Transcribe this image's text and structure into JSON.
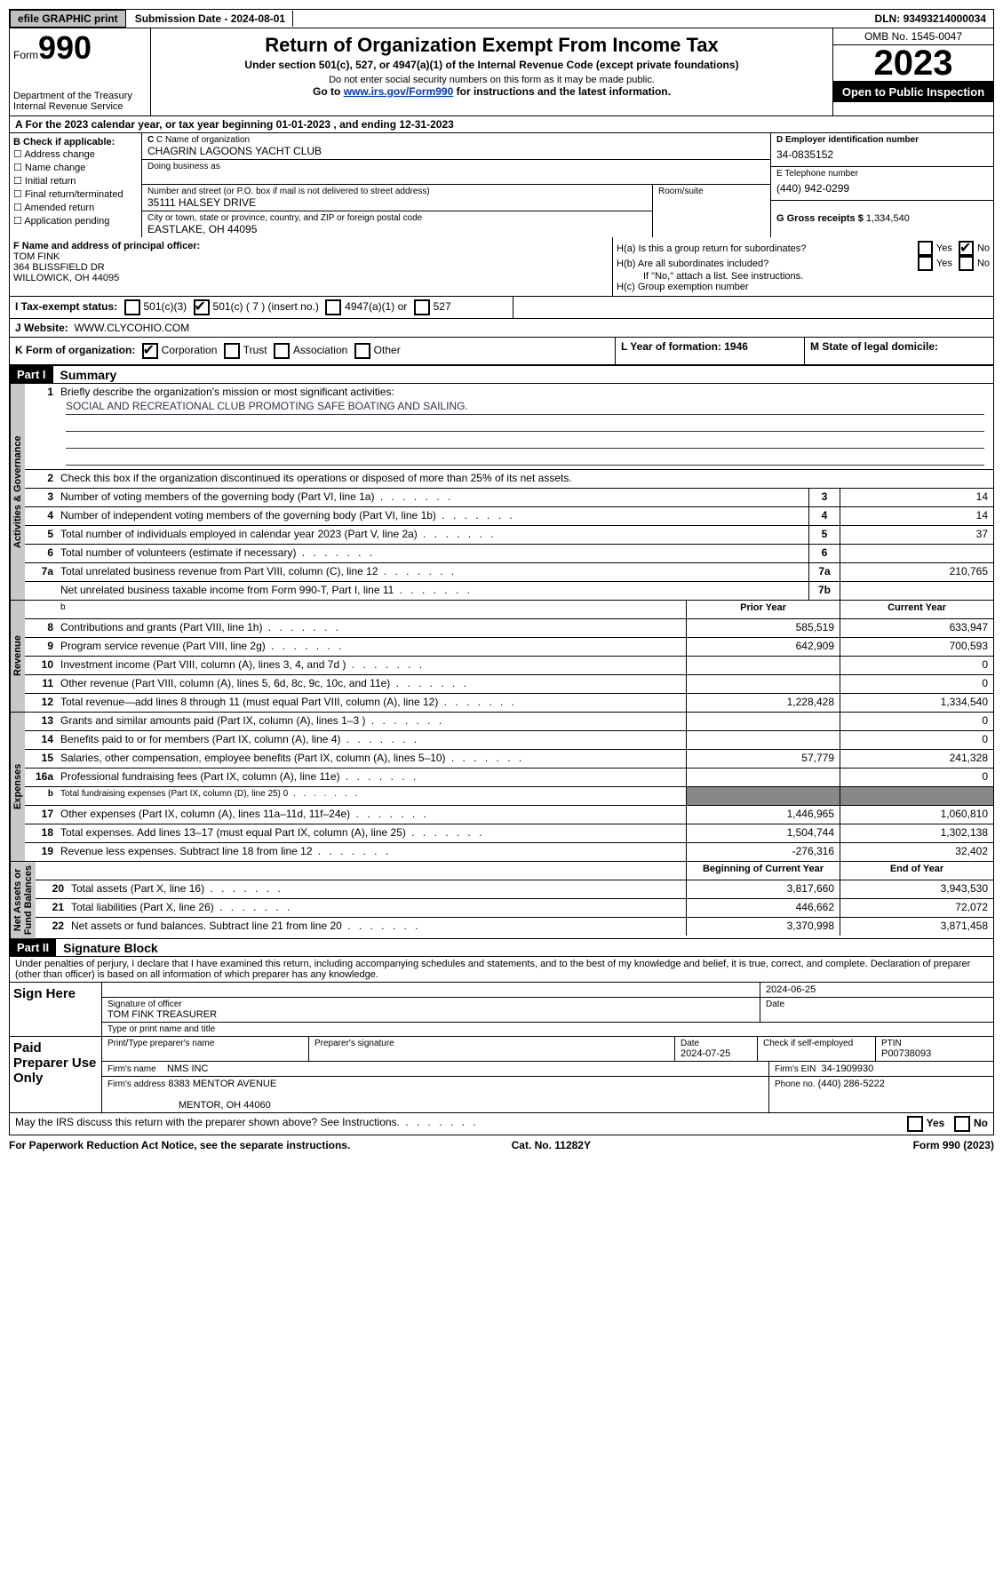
{
  "topbar": {
    "efile": "efile GRAPHIC print",
    "submission": "Submission Date - 2024-08-01",
    "dln_label": "DLN:",
    "dln": "93493214000034"
  },
  "header": {
    "form_word": "Form",
    "form_num": "990",
    "dept": "Department of the Treasury\nInternal Revenue Service",
    "title": "Return of Organization Exempt From Income Tax",
    "subtitle": "Under section 501(c), 527, or 4947(a)(1) of the Internal Revenue Code (except private foundations)",
    "warn1": "Do not enter social security numbers on this form as it may be made public.",
    "warn2_pre": "Go to ",
    "warn2_link": "www.irs.gov/Form990",
    "warn2_post": " for instructions and the latest information.",
    "omb": "OMB No. 1545-0047",
    "year": "2023",
    "inspect": "Open to Public Inspection"
  },
  "rowA": {
    "text_pre": "A For the 2023 calendar year, or tax year beginning ",
    "begin": "01-01-2023",
    "mid": "   , and ending ",
    "end": "12-31-2023"
  },
  "B": {
    "hdr": "B Check if applicable:",
    "items": [
      "Address change",
      "Name change",
      "Initial return",
      "Final return/terminated",
      "Amended return",
      "Application pending"
    ]
  },
  "C": {
    "name_lbl": "C Name of organization",
    "name": "CHAGRIN LAGOONS YACHT CLUB",
    "dba_lbl": "Doing business as",
    "dba": "",
    "addr_lbl": "Number and street (or P.O. box if mail is not delivered to street address)",
    "addr": "35111 HALSEY DRIVE",
    "room_lbl": "Room/suite",
    "city_lbl": "City or town, state or province, country, and ZIP or foreign postal code",
    "city": "EASTLAKE, OH  44095"
  },
  "D": {
    "ein_lbl": "D Employer identification number",
    "ein": "34-0835152",
    "phone_lbl": "E Telephone number",
    "phone": "(440) 942-0299",
    "gross_lbl": "G Gross receipts $",
    "gross": "1,334,540"
  },
  "F": {
    "lbl": "F  Name and address of principal officer:",
    "name": "TOM FINK",
    "addr1": "364 BLISSFIELD DR",
    "addr2": "WILLOWICK, OH  44095"
  },
  "H": {
    "a": "H(a)  Is this a group return for subordinates?",
    "b": "H(b)  Are all subordinates included?",
    "b_note": "If \"No,\" attach a list. See instructions.",
    "c": "H(c)  Group exemption number",
    "yes": "Yes",
    "no": "No"
  },
  "I": {
    "lbl": "I   Tax-exempt status:",
    "opts": [
      "501(c)(3)",
      "501(c) ( 7 ) (insert no.)",
      "4947(a)(1) or",
      "527"
    ],
    "checked_idx": 1
  },
  "J": {
    "lbl": "J   Website:",
    "val": "WWW.CLYCOHIO.COM"
  },
  "K": {
    "lbl": "K Form of organization:",
    "opts": [
      "Corporation",
      "Trust",
      "Association",
      "Other"
    ],
    "checked_idx": 0,
    "L": "L Year of formation: 1946",
    "M": "M State of legal domicile:"
  },
  "partI": {
    "num": "Part I",
    "title": "Summary",
    "q1_lbl": "Briefly describe the organization's mission or most significant activities:",
    "q1_val": "SOCIAL AND RECREATIONAL CLUB PROMOTING SAFE BOATING AND SAILING.",
    "q2": "Check this box        if the organization discontinued its operations or disposed of more than 25% of its net assets.",
    "lines_gov": [
      {
        "n": "3",
        "d": "Number of voting members of the governing body (Part VI, line 1a)",
        "cn": "3",
        "v": "14"
      },
      {
        "n": "4",
        "d": "Number of independent voting members of the governing body (Part VI, line 1b)",
        "cn": "4",
        "v": "14"
      },
      {
        "n": "5",
        "d": "Total number of individuals employed in calendar year 2023 (Part V, line 2a)",
        "cn": "5",
        "v": "37"
      },
      {
        "n": "6",
        "d": "Total number of volunteers (estimate if necessary)",
        "cn": "6",
        "v": ""
      },
      {
        "n": "7a",
        "d": "Total unrelated business revenue from Part VIII, column (C), line 12",
        "cn": "7a",
        "v": "210,765"
      },
      {
        "n": "",
        "d": "Net unrelated business taxable income from Form 990-T, Part I, line 11",
        "cn": "7b",
        "v": ""
      }
    ],
    "hdr_prior": "Prior Year",
    "hdr_cur": "Current Year",
    "lines_rev": [
      {
        "n": "8",
        "d": "Contributions and grants (Part VIII, line 1h)",
        "p": "585,519",
        "c": "633,947"
      },
      {
        "n": "9",
        "d": "Program service revenue (Part VIII, line 2g)",
        "p": "642,909",
        "c": "700,593"
      },
      {
        "n": "10",
        "d": "Investment income (Part VIII, column (A), lines 3, 4, and 7d )",
        "p": "",
        "c": "0"
      },
      {
        "n": "11",
        "d": "Other revenue (Part VIII, column (A), lines 5, 6d, 8c, 9c, 10c, and 11e)",
        "p": "",
        "c": "0"
      },
      {
        "n": "12",
        "d": "Total revenue—add lines 8 through 11 (must equal Part VIII, column (A), line 12)",
        "p": "1,228,428",
        "c": "1,334,540"
      }
    ],
    "lines_exp": [
      {
        "n": "13",
        "d": "Grants and similar amounts paid (Part IX, column (A), lines 1–3 )",
        "p": "",
        "c": "0"
      },
      {
        "n": "14",
        "d": "Benefits paid to or for members (Part IX, column (A), line 4)",
        "p": "",
        "c": "0"
      },
      {
        "n": "15",
        "d": "Salaries, other compensation, employee benefits (Part IX, column (A), lines 5–10)",
        "p": "57,779",
        "c": "241,328"
      },
      {
        "n": "16a",
        "d": "Professional fundraising fees (Part IX, column (A), line 11e)",
        "p": "",
        "c": "0"
      },
      {
        "n": "b",
        "d": "Total fundraising expenses (Part IX, column (D), line 25) 0",
        "p": "GREY",
        "c": "GREY",
        "small": true
      },
      {
        "n": "17",
        "d": "Other expenses (Part IX, column (A), lines 11a–11d, 11f–24e)",
        "p": "1,446,965",
        "c": "1,060,810"
      },
      {
        "n": "18",
        "d": "Total expenses. Add lines 13–17 (must equal Part IX, column (A), line 25)",
        "p": "1,504,744",
        "c": "1,302,138"
      },
      {
        "n": "19",
        "d": "Revenue less expenses. Subtract line 18 from line 12",
        "p": "-276,316",
        "c": "32,402"
      }
    ],
    "hdr_begin": "Beginning of Current Year",
    "hdr_end": "End of Year",
    "lines_na": [
      {
        "n": "20",
        "d": "Total assets (Part X, line 16)",
        "p": "3,817,660",
        "c": "3,943,530"
      },
      {
        "n": "21",
        "d": "Total liabilities (Part X, line 26)",
        "p": "446,662",
        "c": "72,072"
      },
      {
        "n": "22",
        "d": "Net assets or fund balances. Subtract line 21 from line 20",
        "p": "3,370,998",
        "c": "3,871,458"
      }
    ],
    "tabs": {
      "gov": "Activities & Governance",
      "rev": "Revenue",
      "exp": "Expenses",
      "na": "Net Assets or\nFund Balances"
    }
  },
  "partII": {
    "num": "Part II",
    "title": "Signature Block",
    "penalty": "Under penalties of perjury, I declare that I have examined this return, including accompanying schedules and statements, and to the best of my knowledge and belief, it is true, correct, and complete. Declaration of preparer (other than officer) is based on all information of which preparer has any knowledge.",
    "sign_here": "Sign Here",
    "sig_lbl": "Signature of officer",
    "sig_date": "2024-06-25",
    "date_lbl": "Date",
    "officer": "TOM FINK  TREASURER",
    "print_lbl": "Type or print name and title",
    "paid": "Paid Preparer Use Only",
    "prep_name_lbl": "Print/Type preparer's name",
    "prep_sig_lbl": "Preparer's signature",
    "prep_date_lbl": "Date",
    "prep_date": "2024-07-25",
    "self_emp": "Check         if self-employed",
    "ptin_lbl": "PTIN",
    "ptin": "P00738093",
    "firm_name_lbl": "Firm's name",
    "firm_name": "NMS INC",
    "firm_ein_lbl": "Firm's EIN",
    "firm_ein": "34-1909930",
    "firm_addr_lbl": "Firm's address",
    "firm_addr1": "8383 MENTOR AVENUE",
    "firm_addr2": "MENTOR, OH  44060",
    "firm_phone_lbl": "Phone no.",
    "firm_phone": "(440) 286-5222",
    "discuss": "May the IRS discuss this return with the preparer shown above? See Instructions."
  },
  "footer": {
    "pra": "For Paperwork Reduction Act Notice, see the separate instructions.",
    "cat": "Cat. No. 11282Y",
    "form": "Form 990 (2023)"
  }
}
